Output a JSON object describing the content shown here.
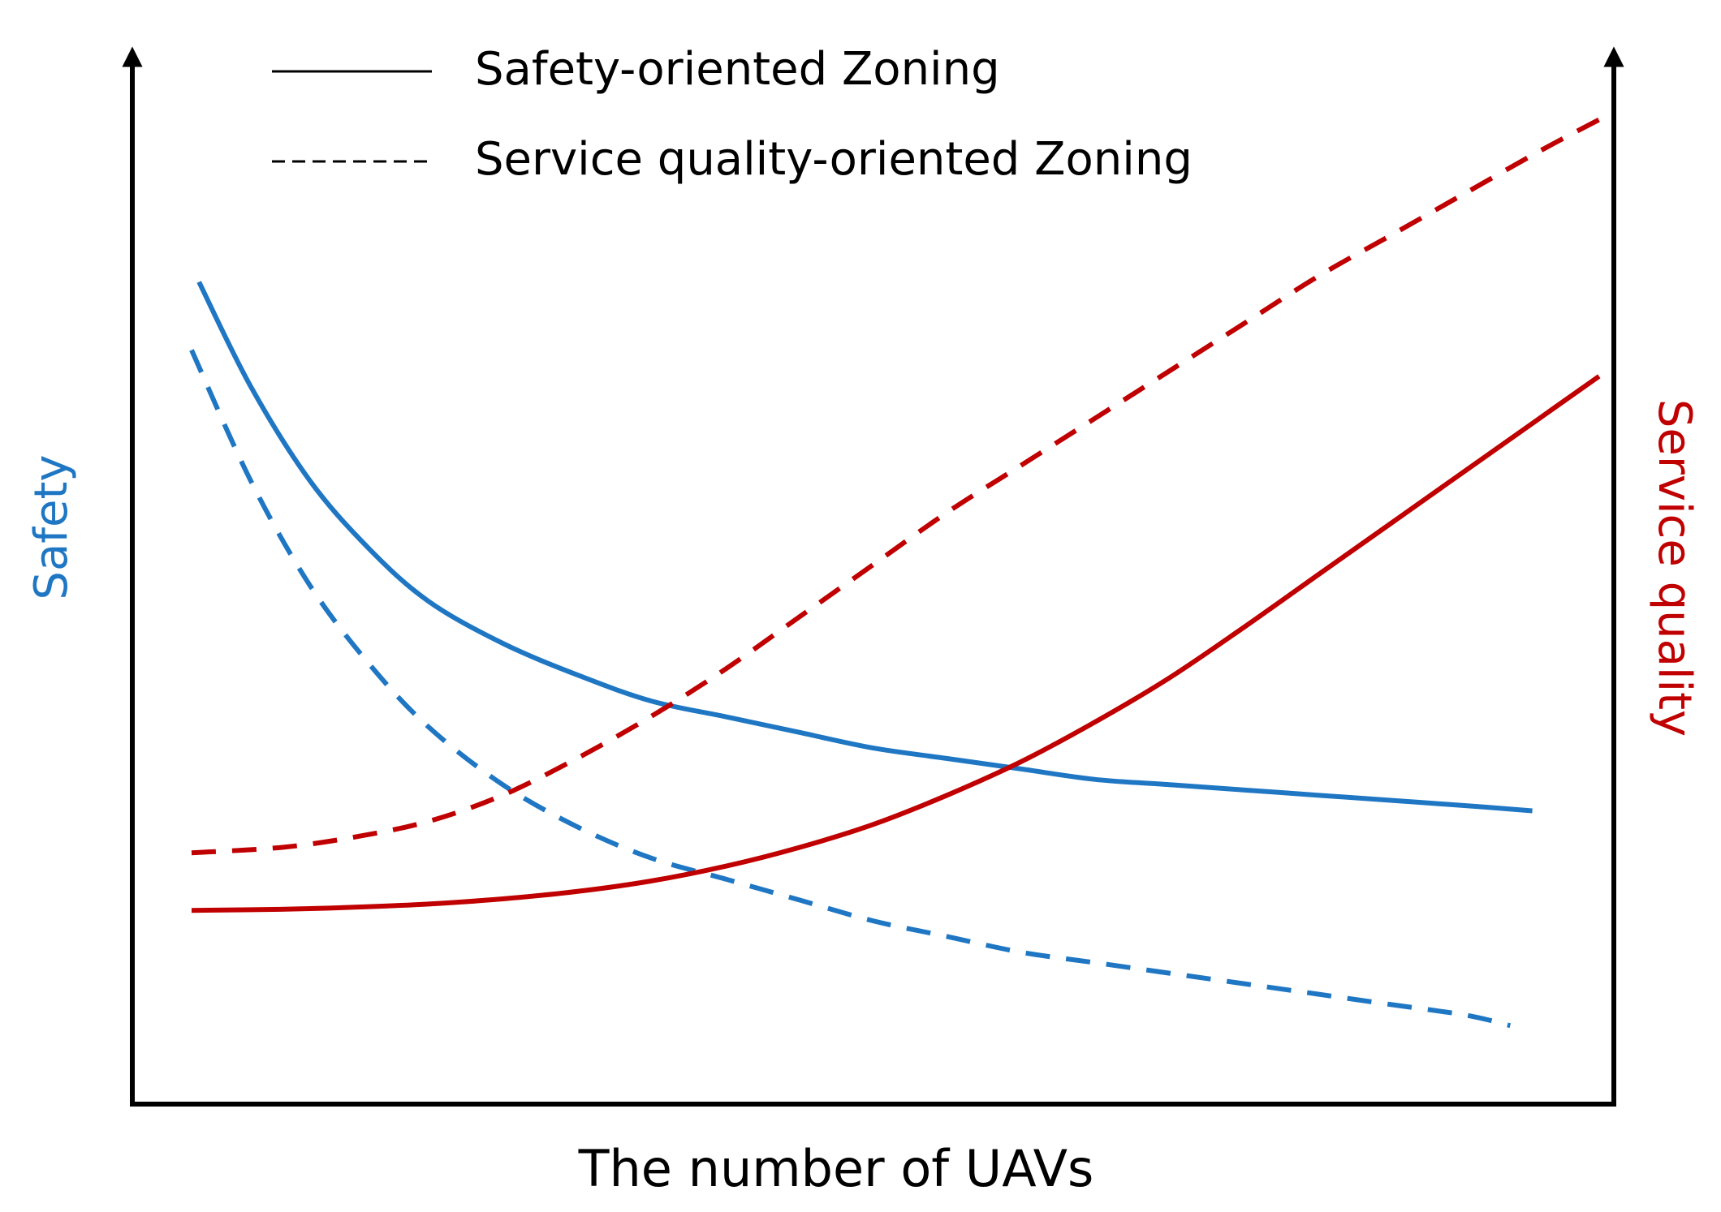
{
  "chart_data": {
    "type": "line",
    "title": "",
    "xlabel": "The number of UAVs",
    "ylabel_left": "Safety",
    "ylabel_right": "Service quality",
    "xlim": [
      0,
      100
    ],
    "ylim": [
      0,
      100
    ],
    "legend": {
      "position": "top-left",
      "entries": [
        {
          "label": "Safety-oriented Zoning",
          "style": "solid"
        },
        {
          "label": "Service quality-oriented Zoning",
          "style": "dashed"
        }
      ]
    },
    "colors": {
      "axis": "#000000",
      "safety": "#1f77c4",
      "service": "#c00000",
      "legend_line": "#000000"
    },
    "series": [
      {
        "name": "Safety (Safety-oriented Zoning)",
        "axis": "left",
        "color_key": "safety",
        "style": "solid",
        "x": [
          4.5,
          8,
          12,
          16,
          20,
          25,
          30,
          35,
          40,
          45,
          50,
          55,
          60,
          65,
          70,
          75,
          80,
          85,
          90,
          94.5
        ],
        "y": [
          78.5,
          68.5,
          59.5,
          53,
          48,
          44,
          41,
          38.5,
          37,
          35.5,
          34,
          33,
          32,
          31,
          30.5,
          30,
          29.5,
          29,
          28.5,
          28
        ]
      },
      {
        "name": "Safety (Service quality-oriented Zoning)",
        "axis": "left",
        "color_key": "safety",
        "style": "dashed",
        "x": [
          4,
          8,
          12,
          16,
          20,
          25,
          30,
          35,
          40,
          45,
          50,
          55,
          60,
          65,
          70,
          75,
          80,
          85,
          90,
          93
        ],
        "y": [
          72,
          59.5,
          49.5,
          42,
          36,
          30.5,
          26.5,
          23.5,
          21.5,
          19.5,
          17.5,
          16,
          14.5,
          13.5,
          12.5,
          11.5,
          10.5,
          9.5,
          8.5,
          7.5
        ]
      },
      {
        "name": "Service quality (Safety-oriented Zoning)",
        "axis": "right",
        "color_key": "service",
        "style": "solid",
        "x": [
          4,
          10,
          15,
          20,
          25,
          30,
          35,
          40,
          45,
          50,
          55,
          60,
          65,
          70,
          75,
          80,
          85,
          90,
          95,
          99
        ],
        "y": [
          18.5,
          18.6,
          18.8,
          19.1,
          19.6,
          20.3,
          21.3,
          22.7,
          24.5,
          26.7,
          29.5,
          32.7,
          36.5,
          40.7,
          45.5,
          50.5,
          55.5,
          60.5,
          65.5,
          69.5
        ]
      },
      {
        "name": "Service quality (Service quality-oriented Zoning)",
        "axis": "right",
        "color_key": "service",
        "style": "dashed",
        "x": [
          4,
          10,
          15,
          20,
          25,
          30,
          35,
          40,
          45,
          50,
          55,
          60,
          65,
          70,
          75,
          80,
          85,
          90,
          95,
          99
        ],
        "y": [
          24,
          24.5,
          25.5,
          27,
          29.5,
          33,
          37,
          41.5,
          46.5,
          51.5,
          56.5,
          61,
          65.5,
          70,
          74.5,
          79,
          83,
          87,
          91,
          94
        ]
      }
    ]
  }
}
